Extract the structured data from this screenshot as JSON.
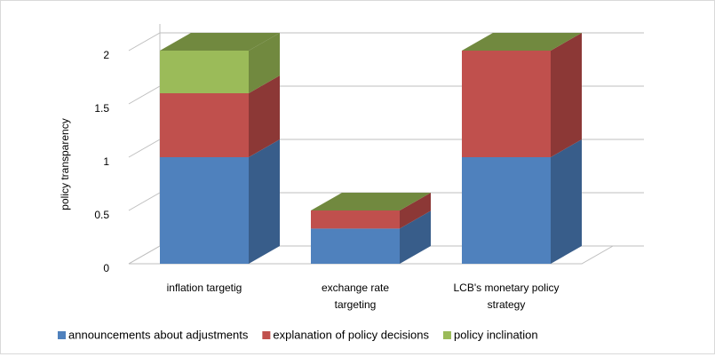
{
  "chart_data": {
    "type": "bar3d_stacked",
    "y_label": "policy transparency",
    "categories": [
      "inflation targetig",
      "exchange rate targeting",
      "LCB's monetary policy strategy"
    ],
    "series": [
      {
        "name": "announcements about adjustments",
        "color": "#4f81bd",
        "side": "#385d8a",
        "values": [
          1,
          0.33,
          1
        ]
      },
      {
        "name": "explanation of policy decisions",
        "color": "#c0504d",
        "side": "#8c3836",
        "values": [
          0.6,
          0.17,
          1
        ]
      },
      {
        "name": "policy inclination",
        "color": "#9bbb59",
        "side": "#71893f",
        "values": [
          0.4,
          0,
          0
        ]
      }
    ],
    "ylim": [
      0,
      2
    ],
    "yticks": [
      0,
      0.5,
      1,
      1.5,
      2
    ],
    "grid": true
  }
}
